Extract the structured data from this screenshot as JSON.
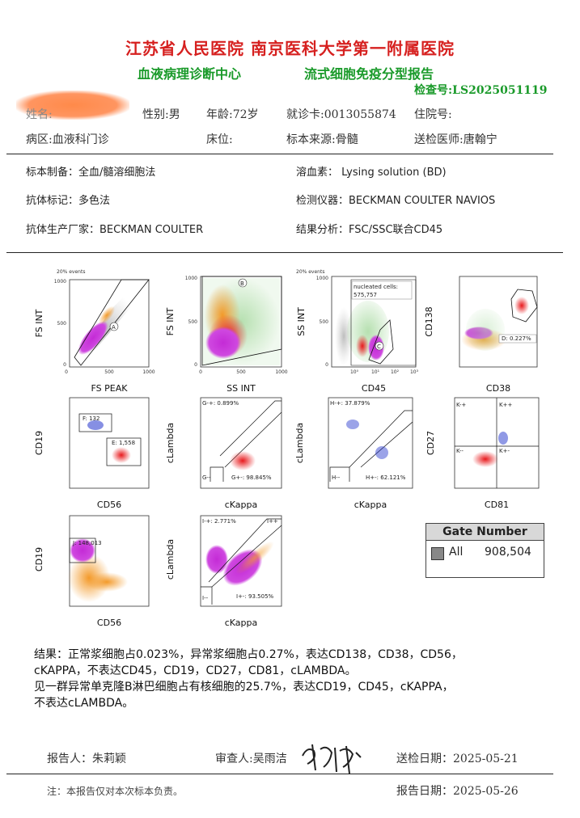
{
  "header": {
    "hospital": "江苏省人民医院    南京医科大学第一附属医院",
    "center": "血液病理诊断中心",
    "report_title": "流式细胞免疫分型报告",
    "check_no": "检查号:LS2025051119"
  },
  "patient": {
    "name_label": "姓名:",
    "sex": "性别:男",
    "age": "年龄:72岁",
    "card": "就诊卡:0013055874",
    "inpatient": "住院号:",
    "ward": "病区:血液科门诊",
    "bed": "床位:",
    "source": "标本来源:骨髓",
    "doctor": "送检医师:唐翰宁"
  },
  "method": {
    "prep": "标本制备：全血/髓溶细胞法",
    "lysis": "溶血素： Lysing solution (BD)",
    "antibody": "抗体标记：多色法",
    "instrument": "检测仪器：BECKMAN COULTER NAVIOS",
    "maker": "抗体生产厂家：BECKMAN COULTER",
    "analysis": "结果分析：FSC/SSC联合CD45"
  },
  "plots": [
    {
      "events": "20% events",
      "x": "FS PEAK",
      "y": "FS INT",
      "gate": "A",
      "xticks": [
        "0",
        "500",
        "1000"
      ],
      "yticks": [
        "0",
        "500",
        "1000"
      ]
    },
    {
      "x": "SS INT",
      "y": "FS INT",
      "gate": "B",
      "xticks": [
        "0",
        "500",
        "1000"
      ],
      "yticks": [
        "0",
        "500",
        "1000"
      ]
    },
    {
      "events": "20% events",
      "x": "CD45",
      "y": "SS INT",
      "gate": "C",
      "note1": "nucleated cells:",
      "note2": "575,757",
      "xticks": [
        "10⁰",
        "10¹",
        "10²",
        "10³"
      ],
      "yticks": [
        "0",
        "500",
        "1000"
      ]
    },
    {
      "x": "CD38",
      "y": "CD138",
      "gate": "D: 0.227%"
    },
    {
      "x": "CD56",
      "y": "CD19",
      "g1": "F: 132",
      "g2": "E: 1,558"
    },
    {
      "x": "cKappa",
      "y": "cLambda",
      "g1": "G-+: 0.899%",
      "g2": "G--",
      "g3": "G+-: 98.845%"
    },
    {
      "x": "cKappa",
      "y": "cLambda",
      "g1": "H-+: 37.879%",
      "g2": "H--",
      "g3": "H+-: 62.121%"
    },
    {
      "x": "CD81",
      "y": "CD27",
      "g1": "K-+",
      "g2": "K++",
      "g3": "K--",
      "g4": "K+-"
    },
    {
      "x": "CD56",
      "y": "CD19",
      "g1": "J: 148,013"
    },
    {
      "x": "cKappa",
      "y": "cLambda",
      "g1": "I-+: 2.771%",
      "g2": "I++",
      "g3": "I--",
      "g4": "I+-: 93.505%"
    }
  ],
  "gate_number": {
    "title": "Gate Number",
    "label": "All",
    "value": "908,504"
  },
  "result": {
    "line1": "结果：正常浆细胞占0.023%，异常浆细胞占0.27%，表达CD138，CD38，CD56，",
    "line2": "cKAPPA，不表达CD45，CD19，CD27，CD81，cLAMBDA。",
    "line3": "见一群异常单克隆B淋巴细胞占有核细胞的25.7%，表达CD19，CD45，cKAPPA，",
    "line4": "不表达cLAMBDA。"
  },
  "footer": {
    "reporter": "报告人：朱莉颖",
    "reviewer": "审查人:吴雨洁",
    "send_date": "送检日期：2025-05-21",
    "note": "注：本报告仅对本次标本负责。",
    "report_date": "报告日期：2025-05-26"
  },
  "colors": {
    "red": "#d6201f",
    "green": "#1a9a2a",
    "magenta": "#c42bd6",
    "orange": "#f39a2a",
    "blue": "#2233cc",
    "lightgreen": "#b6e0b0"
  }
}
